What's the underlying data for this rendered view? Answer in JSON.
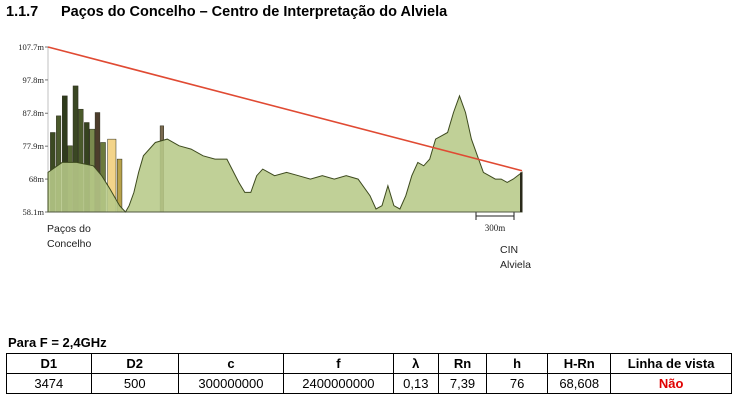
{
  "heading": {
    "number": "1.1.7",
    "title": "Paços do Concelho – Centro de Interpretação do Alviela"
  },
  "chart_data": {
    "type": "area",
    "title": "",
    "xlabel": "",
    "ylabel": "",
    "y_ticks": [
      "107.7m",
      "97.8m",
      "87.8m",
      "77.9m",
      "68m",
      "58.1m"
    ],
    "y_tick_values": [
      107.7,
      97.8,
      87.8,
      77.9,
      68,
      58.1
    ],
    "ylim": [
      58.1,
      107.7
    ],
    "xlim": [
      0,
      3974
    ],
    "scale_bar_label": "300m",
    "grid": false,
    "terrain_color": "#b7c989",
    "sightline_color": "#e04a33",
    "start_label": [
      "Paços do",
      "Concelho"
    ],
    "end_label": [
      "CIN",
      "Alviela"
    ],
    "sightline": {
      "x": [
        0,
        3974
      ],
      "y": [
        107.7,
        70.5
      ]
    },
    "terrain": {
      "x": [
        0,
        120,
        240,
        380,
        450,
        520,
        600,
        650,
        680,
        720,
        760,
        800,
        900,
        1000,
        1100,
        1200,
        1300,
        1400,
        1500,
        1600,
        1650,
        1700,
        1750,
        1800,
        1900,
        2000,
        2100,
        2200,
        2300,
        2400,
        2500,
        2600,
        2700,
        2750,
        2800,
        2850,
        2900,
        2950,
        3000,
        3050,
        3100,
        3150,
        3200,
        3250,
        3300,
        3350,
        3400,
        3450,
        3500,
        3550,
        3600,
        3650,
        3700,
        3750,
        3800,
        3850,
        3900,
        3974
      ],
      "y": [
        70,
        73,
        73,
        72,
        69,
        65,
        60,
        58.1,
        60,
        64,
        70,
        75,
        79,
        80,
        78,
        77,
        75,
        74,
        74,
        67,
        64,
        64,
        69,
        71,
        69,
        70,
        69,
        68,
        69,
        68,
        69,
        68,
        63,
        59,
        60,
        66,
        60,
        59,
        63,
        69,
        73,
        72,
        74,
        80,
        81,
        82,
        88,
        93,
        88,
        80,
        75,
        70,
        69,
        68,
        68,
        67,
        68,
        70
      ]
    },
    "buildings": [
      {
        "x": 20,
        "width": 40,
        "height": 82,
        "color": "#3c4a22"
      },
      {
        "x": 70,
        "width": 38,
        "height": 87,
        "color": "#4b5a2c"
      },
      {
        "x": 120,
        "width": 42,
        "height": 93,
        "color": "#2f3b1c"
      },
      {
        "x": 165,
        "width": 40,
        "height": 78,
        "color": "#556633"
      },
      {
        "x": 210,
        "width": 42,
        "height": 96,
        "color": "#3a4723"
      },
      {
        "x": 255,
        "width": 40,
        "height": 89,
        "color": "#4a5a2b"
      },
      {
        "x": 305,
        "width": 40,
        "height": 85,
        "color": "#36431f"
      },
      {
        "x": 350,
        "width": 42,
        "height": 83,
        "color": "#7a8a4e"
      },
      {
        "x": 395,
        "width": 40,
        "height": 88,
        "color": "#4d3d2c"
      },
      {
        "x": 440,
        "width": 42,
        "height": 79,
        "color": "#6b7a3d"
      },
      {
        "x": 500,
        "width": 70,
        "height": 80,
        "color": "#f3d48a"
      },
      {
        "x": 580,
        "width": 40,
        "height": 74,
        "color": "#b8a24a"
      },
      {
        "x": 940,
        "width": 30,
        "height": 84,
        "color": "#7a6a50"
      }
    ]
  },
  "frequency_label": "Para F = 2,4GHz",
  "table": {
    "headers": [
      "D1",
      "D2",
      "c",
      "f",
      "λ",
      "Rn",
      "h",
      "H-Rn",
      "Linha de vista"
    ],
    "row": [
      "3474",
      "500",
      "300000000",
      "2400000000",
      "0,13",
      "7,39",
      "76",
      "68,608",
      "Não"
    ]
  }
}
